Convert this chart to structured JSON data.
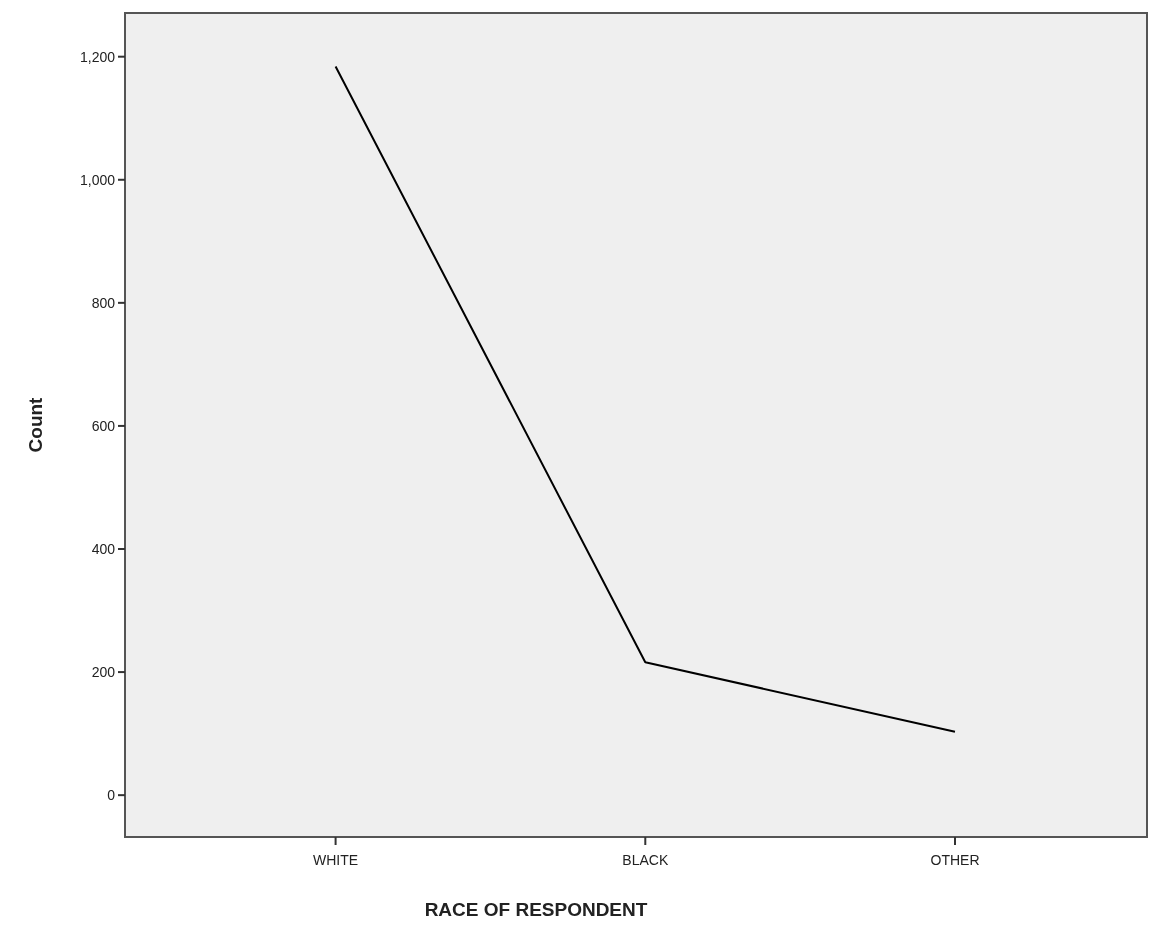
{
  "chart_data": {
    "type": "line",
    "xlabel": "RACE OF RESPONDENT",
    "ylabel": "Count",
    "categories": [
      "WHITE",
      "BLACK",
      "OTHER"
    ],
    "series": [
      {
        "color": "#000000",
        "values": [
          1184,
          216,
          103
        ]
      }
    ],
    "ylim": [
      -68,
      1271
    ],
    "yticks": [
      {
        "value": 0,
        "label": "0"
      },
      {
        "value": 200,
        "label": "200"
      },
      {
        "value": 400,
        "label": "400"
      },
      {
        "value": 600,
        "label": "600"
      },
      {
        "value": 800,
        "label": "800"
      },
      {
        "value": 1000,
        "label": "1,000"
      },
      {
        "value": 1200,
        "label": "1,200"
      }
    ],
    "marker": "none",
    "line_style": "solid"
  }
}
